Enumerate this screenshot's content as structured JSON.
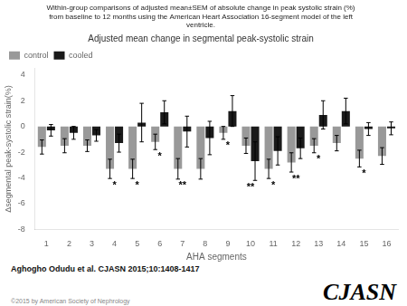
{
  "chart_data": {
    "type": "bar",
    "title": "Within-group comparisons of adjusted mean±SEM of absolute change in peak systolic strain (%)\nfrom baseline to 12 months using the American Heart Association 16-segment model of the left\nventricle.",
    "subtitle": "Adjusted mean change in segmental peak-systolic strain",
    "x_label": "AHA segments",
    "y_label": "Δsegmental peak-systolic strain(%)",
    "categories": [
      1,
      2,
      3,
      4,
      5,
      6,
      7,
      8,
      9,
      10,
      11,
      12,
      13,
      14,
      15,
      16
    ],
    "series": [
      {
        "name": "control",
        "color": "#999999",
        "values": [
          -1.6,
          -1.5,
          -1.5,
          -3.3,
          -3.3,
          -1.2,
          -3.3,
          -3.3,
          -0.5,
          -1.5,
          -3.3,
          -2.8,
          -1.5,
          -1.3,
          -2.5,
          -2.3
        ],
        "errors": [
          0.55,
          0.55,
          0.45,
          0.75,
          0.75,
          0.6,
          0.8,
          0.8,
          0.5,
          0.6,
          0.75,
          0.75,
          0.55,
          0.6,
          0.65,
          0.65
        ]
      },
      {
        "name": "cooled",
        "color": "#1a1a1a",
        "values": [
          -0.3,
          -0.5,
          -0.7,
          -1.3,
          0.3,
          1.1,
          -0.4,
          -0.9,
          1.2,
          -2.7,
          -1.9,
          -1.7,
          0.9,
          1.2,
          -0.2,
          -0.15
        ],
        "errors": [
          0.45,
          0.5,
          0.45,
          0.7,
          1.5,
          0.9,
          1.2,
          1.3,
          1.2,
          1.5,
          1.1,
          0.8,
          1.1,
          1.0,
          0.5,
          0.5
        ]
      }
    ],
    "annotations": [
      {
        "x": 4,
        "text": "*"
      },
      {
        "x": 5,
        "text": "*"
      },
      {
        "x": 6,
        "text": "*"
      },
      {
        "x": 9,
        "text": "*"
      },
      {
        "x": 11,
        "text": "*"
      },
      {
        "x": 13,
        "text": "*"
      },
      {
        "x": 15,
        "text": "*"
      },
      {
        "x": 7,
        "text": "**"
      },
      {
        "x": 12,
        "text": "**"
      },
      {
        "x": 10,
        "text": "**"
      }
    ],
    "ylim": [
      -8,
      4.5
    ],
    "yticks": [
      -8,
      -6,
      -4,
      -2,
      0,
      2,
      4
    ],
    "grid": false,
    "legend": "upper left",
    "citation": "Aghogho Odudu et al. CJASN 2015;10:1408-1417",
    "copyright": "©2015 by American Society of Nephrology",
    "brand": "CJASN"
  }
}
